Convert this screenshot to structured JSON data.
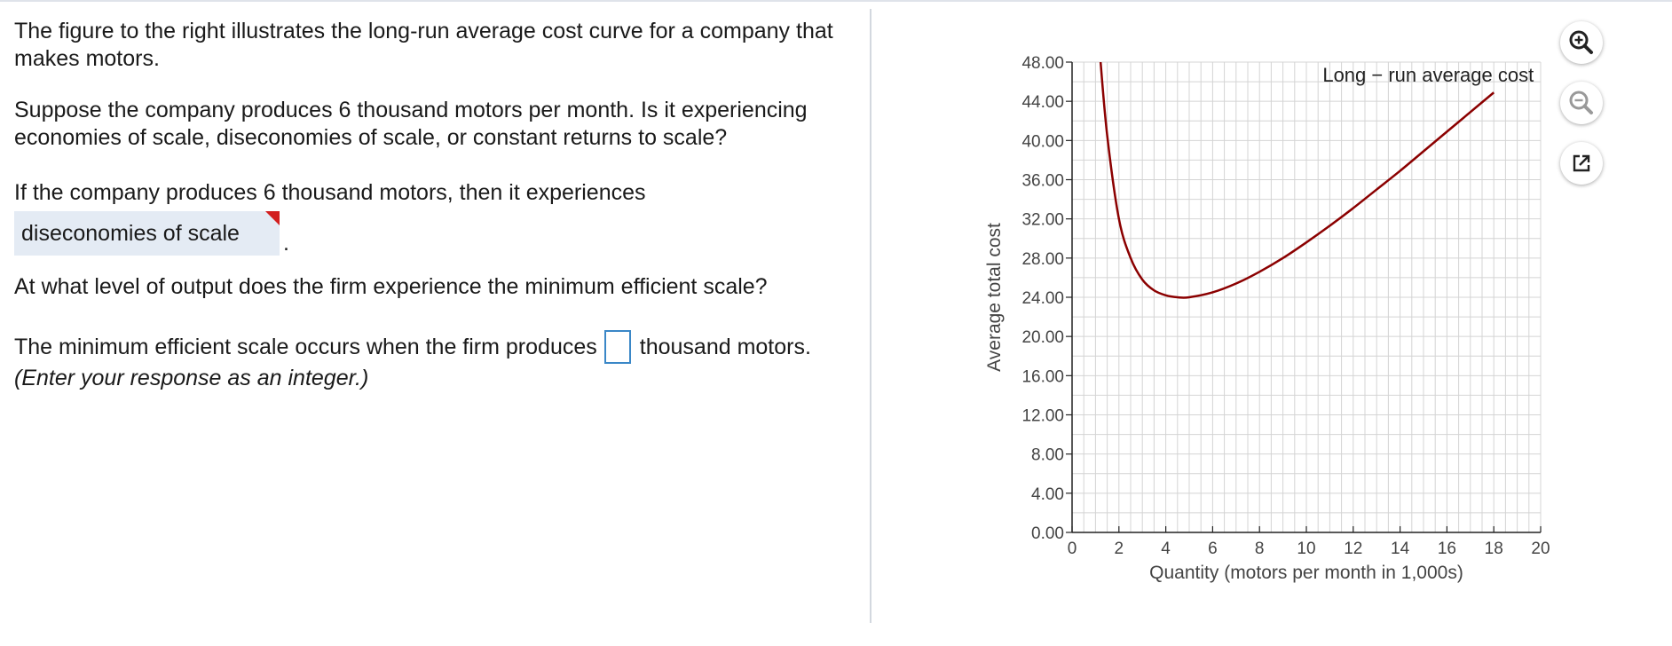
{
  "question": {
    "intro": "The figure to the right illustrates the long-run average cost curve for a company that makes motors.",
    "prompt1": "Suppose the company produces 6 thousand motors per month. Is it experiencing economies of scale, diseconomies of scale, or constant returns to scale?",
    "stem1": "If the company produces 6 thousand motors, then it experiences",
    "dropdown_value": "diseconomies of scale",
    "period": ".",
    "prompt2": "At what level of output does the firm experience the minimum efficient scale?",
    "stem2_before": "The minimum efficient scale occurs when the firm produces",
    "stem2_after": "thousand motors.",
    "answer_value": "",
    "instruction": "(Enter your response as an integer.)"
  },
  "tools": {
    "zoom_in_icon": "zoom-in-icon",
    "zoom_out_icon": "zoom-out-icon",
    "popout_icon": "popout-icon"
  },
  "chart_data": {
    "type": "line",
    "title": "",
    "xlabel": "Quantity (motors per month in 1,000s)",
    "ylabel": "Average total cost",
    "xlim": [
      0,
      20
    ],
    "ylim": [
      0,
      48
    ],
    "x_ticks": [
      "0",
      "2",
      "4",
      "6",
      "8",
      "10",
      "12",
      "14",
      "16",
      "18",
      "20"
    ],
    "y_ticks": [
      "0.00",
      "4.00",
      "8.00",
      "12.00",
      "16.00",
      "20.00",
      "24.00",
      "28.00",
      "32.00",
      "36.00",
      "40.00",
      "44.00",
      "48.00"
    ],
    "grid": true,
    "series": [
      {
        "name": "Long − run average cost",
        "color": "#8b0000",
        "x": [
          1.2,
          1.5,
          2,
          2.5,
          3,
          3.5,
          4,
          4.5,
          5,
          6,
          7,
          8,
          9,
          10,
          11,
          12,
          13,
          14,
          15,
          16,
          17,
          18
        ],
        "y": [
          48.5,
          40.5,
          32.0,
          28.0,
          25.8,
          24.7,
          24.2,
          24.0,
          24.0,
          24.5,
          25.4,
          26.6,
          28.0,
          29.6,
          31.3,
          33.1,
          35.0,
          36.9,
          38.9,
          40.9,
          42.9,
          44.9
        ]
      }
    ],
    "annotations": [
      {
        "text": "Long − run average cost",
        "x": 15.2,
        "y": 46.0
      }
    ]
  }
}
